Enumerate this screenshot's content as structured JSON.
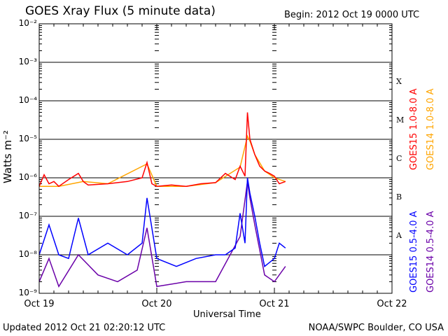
{
  "header": {
    "title": "GOES Xray Flux (5 minute data)",
    "begin": "Begin:  2012 Oct 19 0000 UTC"
  },
  "footer": {
    "updated": "Updated 2012 Oct 21 02:20:12 UTC",
    "credit": "NOAA/SWPC Boulder, CO USA"
  },
  "colors": {
    "goes15_long": "#ff0000",
    "goes14_long": "#ffa500",
    "goes15_short": "#0000ff",
    "goes14_short": "#6a00a8"
  },
  "chart_data": {
    "type": "line",
    "title": "GOES Xray Flux (5 minute data)",
    "xlabel": "Universal Time",
    "ylabel": "Watts m⁻²",
    "y_scale": "log",
    "ylim": [
      1e-09,
      0.01
    ],
    "xlim": [
      "2012-10-19 00:00",
      "2012-10-22 00:00"
    ],
    "x_ticks": [
      "Oct 19",
      "Oct 20",
      "Oct 21",
      "Oct 22"
    ],
    "y_ticks": [
      "10⁻⁹",
      "10⁻⁸",
      "10⁻⁷",
      "10⁻⁶",
      "10⁻⁵",
      "10⁻⁴",
      "10⁻³",
      "10⁻²"
    ],
    "flare_classes": [
      "A",
      "B",
      "C",
      "M",
      "X"
    ],
    "grid": "horizontal",
    "legend_placement": "right",
    "series": [
      {
        "name": "GOES15 1.0-8.0 A",
        "x": [
          "2012-10-19 00:00",
          "2012-10-19 01:00",
          "2012-10-19 02:00",
          "2012-10-19 03:00",
          "2012-10-19 04:00",
          "2012-10-19 06:00",
          "2012-10-19 08:00",
          "2012-10-19 09:00",
          "2012-10-19 10:00",
          "2012-10-19 14:00",
          "2012-10-19 18:00",
          "2012-10-19 21:00",
          "2012-10-19 22:00",
          "2012-10-19 23:00",
          "2012-10-20 00:00",
          "2012-10-20 03:00",
          "2012-10-20 06:00",
          "2012-10-20 09:00",
          "2012-10-20 12:00",
          "2012-10-20 14:00",
          "2012-10-20 16:00",
          "2012-10-20 17:00",
          "2012-10-20 18:00",
          "2012-10-20 18:30",
          "2012-10-20 19:00",
          "2012-10-20 20:00",
          "2012-10-20 21:00",
          "2012-10-20 22:00",
          "2012-10-20 23:00",
          "2012-10-21 00:00",
          "2012-10-21 01:00",
          "2012-10-21 02:15"
        ],
        "y": [
          6e-07,
          1.2e-06,
          7e-07,
          8e-07,
          6e-07,
          9e-07,
          1.3e-06,
          8e-07,
          6.5e-07,
          7e-07,
          8e-07,
          1e-06,
          2.5e-06,
          7e-07,
          6e-07,
          6.5e-07,
          6e-07,
          7e-07,
          7.5e-07,
          1.3e-06,
          9e-07,
          2e-06,
          1.1e-06,
          5e-05,
          1e-05,
          4e-06,
          2e-06,
          1.5e-06,
          1.3e-06,
          1.1e-06,
          7e-07,
          8e-07
        ]
      },
      {
        "name": "GOES14 1.0-8.0 A",
        "x": [
          "2012-10-19 00:00",
          "2012-10-19 04:00",
          "2012-10-19 09:00",
          "2012-10-19 14:00",
          "2012-10-19 22:00",
          "2012-10-20 00:00",
          "2012-10-20 06:00",
          "2012-10-20 12:00",
          "2012-10-20 17:00",
          "2012-10-20 18:30",
          "2012-10-20 19:00",
          "2012-10-20 20:00",
          "2012-10-20 22:00",
          "2012-10-21 00:00",
          "2012-10-21 02:15"
        ],
        "y": [
          6e-07,
          6e-07,
          8e-07,
          7e-07,
          2.3e-06,
          6e-07,
          6e-07,
          7.5e-07,
          1.9e-06,
          1.2e-05,
          9e-06,
          4e-06,
          1.5e-06,
          1e-06,
          8e-07
        ]
      },
      {
        "name": "GOES15 0.5-4.0 A",
        "x": [
          "2012-10-19 00:00",
          "2012-10-19 02:00",
          "2012-10-19 04:00",
          "2012-10-19 06:00",
          "2012-10-19 08:00",
          "2012-10-19 10:00",
          "2012-10-19 14:00",
          "2012-10-19 18:00",
          "2012-10-19 21:00",
          "2012-10-19 22:00",
          "2012-10-20 00:00",
          "2012-10-20 04:00",
          "2012-10-20 08:00",
          "2012-10-20 12:00",
          "2012-10-20 14:00",
          "2012-10-20 16:00",
          "2012-10-20 17:00",
          "2012-10-20 18:00",
          "2012-10-20 18:30",
          "2012-10-20 19:00",
          "2012-10-20 20:00",
          "2012-10-20 21:00",
          "2012-10-20 22:00",
          "2012-10-21 00:00",
          "2012-10-21 01:00",
          "2012-10-21 02:15"
        ],
        "y": [
          1e-08,
          6e-08,
          1e-08,
          8e-09,
          9e-08,
          1e-08,
          2e-08,
          1e-08,
          2e-08,
          3e-07,
          8e-09,
          5e-09,
          8e-09,
          1e-08,
          1e-08,
          1.5e-08,
          1.2e-07,
          2e-08,
          1e-06,
          4e-07,
          1e-07,
          2e-08,
          5e-09,
          8e-09,
          2e-08,
          1.5e-08
        ]
      },
      {
        "name": "GOES14 0.5-4.0 A",
        "x": [
          "2012-10-19 00:00",
          "2012-10-19 02:00",
          "2012-10-19 04:00",
          "2012-10-19 08:00",
          "2012-10-19 12:00",
          "2012-10-19 16:00",
          "2012-10-19 20:00",
          "2012-10-19 22:00",
          "2012-10-20 00:00",
          "2012-10-20 06:00",
          "2012-10-20 12:00",
          "2012-10-20 17:00",
          "2012-10-20 18:30",
          "2012-10-20 19:00",
          "2012-10-20 20:00",
          "2012-10-20 22:00",
          "2012-10-21 00:00",
          "2012-10-21 02:15"
        ],
        "y": [
          2e-09,
          8e-09,
          1.5e-09,
          1e-08,
          3e-09,
          2e-09,
          4e-09,
          5e-08,
          1.5e-09,
          2e-09,
          2e-09,
          3e-08,
          8e-07,
          3e-07,
          6e-08,
          3e-09,
          2e-09,
          5e-09
        ]
      }
    ]
  }
}
